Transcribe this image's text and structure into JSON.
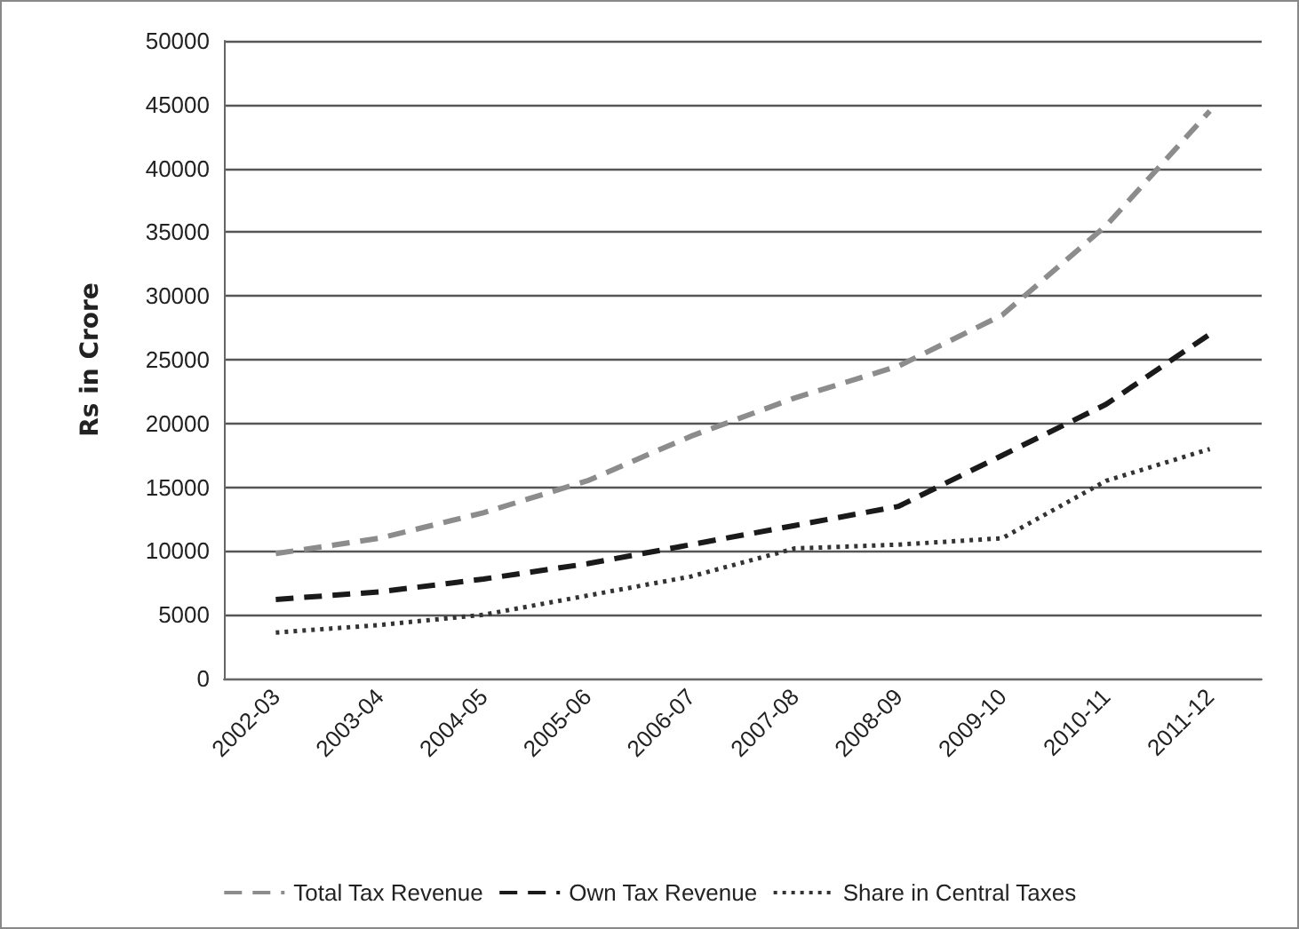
{
  "chart_data": {
    "type": "line",
    "ylabel": "Rs in Crore",
    "categories": [
      "2002-03",
      "2003-04",
      "2004-05",
      "2005-06",
      "2006-07",
      "2007-08",
      "2008-09",
      "2009-10",
      "2010-11",
      "2011-12"
    ],
    "series": [
      {
        "name": "Total Tax Revenue",
        "color": "#8c8c8c",
        "line_style": "dashed",
        "values": [
          9800,
          11000,
          13000,
          15500,
          19000,
          22000,
          24500,
          28500,
          35500,
          44500
        ]
      },
      {
        "name": "Own Tax Revenue",
        "color": "#1a1a1a",
        "line_style": "dashed",
        "values": [
          6200,
          6800,
          7800,
          9000,
          10500,
          12000,
          13500,
          17500,
          21500,
          27000
        ]
      },
      {
        "name": "Share in Central Taxes",
        "color": "#333333",
        "line_style": "dotted",
        "values": [
          3600,
          4200,
          5000,
          6500,
          8000,
          10200,
          10500,
          11000,
          15500,
          18000
        ]
      }
    ],
    "ylim": [
      0,
      50000
    ],
    "yticks": [
      0,
      5000,
      10000,
      15000,
      20000,
      25000,
      30000,
      35000,
      40000,
      45000,
      50000
    ],
    "grid": "y",
    "legend": "bottom",
    "marker": "none"
  }
}
